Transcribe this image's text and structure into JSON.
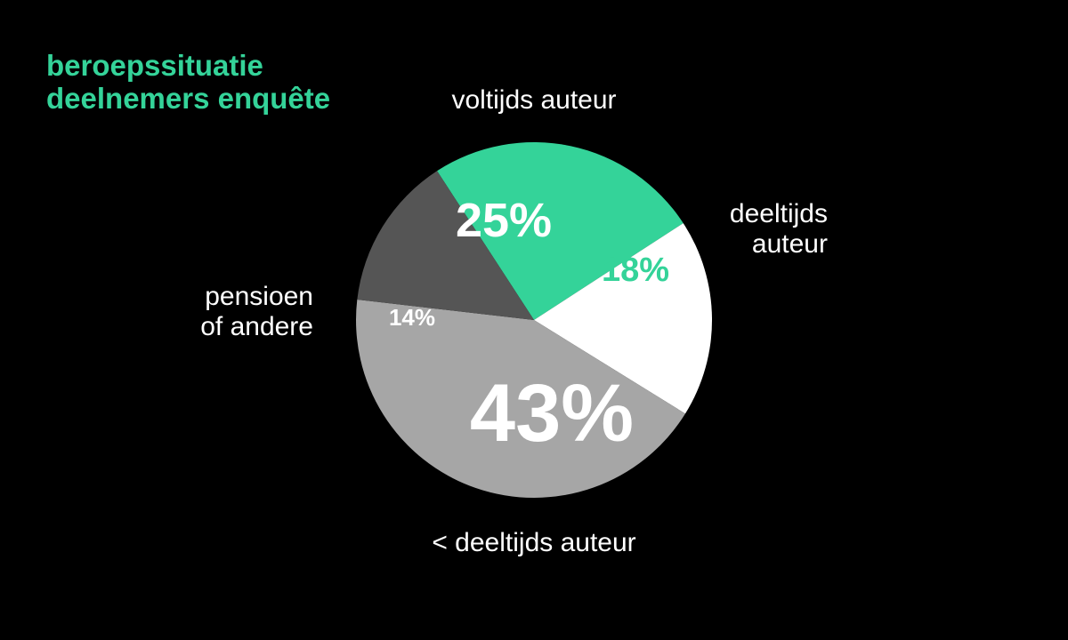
{
  "chart_data": {
    "type": "pie",
    "title_lines": [
      "beroepssituatie",
      "deelnemers enquête"
    ],
    "unit": "%",
    "slices": [
      {
        "label": "voltijds auteur",
        "label_lines": [
          "voltijds auteur"
        ],
        "value": 25,
        "value_label": "25%",
        "color": "#34d399",
        "value_color": "#ffffff"
      },
      {
        "label": "deeltijds auteur",
        "label_lines": [
          "deeltijds",
          "auteur"
        ],
        "value": 18,
        "value_label": "18%",
        "color": "#ffffff",
        "value_color": "#34d399"
      },
      {
        "label": "< deeltijds auteur",
        "label_lines": [
          "< deeltijds auteur"
        ],
        "value": 43,
        "value_label": "43%",
        "color": "#a6a6a6",
        "value_color": "#ffffff"
      },
      {
        "label": "pensioen of andere",
        "label_lines": [
          "pensioen",
          "of andere"
        ],
        "value": 14,
        "value_label": "14%",
        "color": "#555555",
        "value_color": "#ffffff"
      }
    ],
    "start_angle_deg": -123,
    "direction": "clockwise",
    "legend": "none",
    "title_color": "#34d399",
    "label_color": "#ffffff",
    "background": "#000000"
  }
}
